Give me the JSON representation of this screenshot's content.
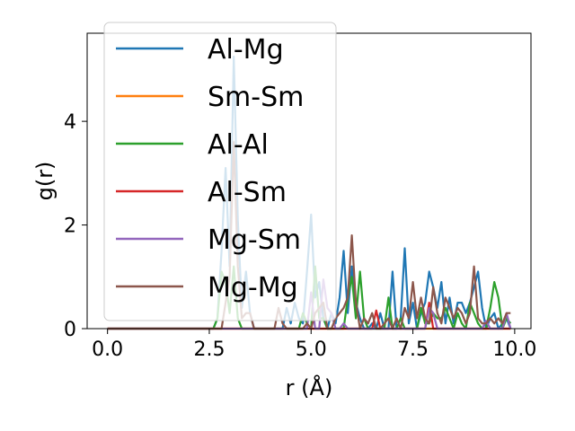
{
  "chart_data": {
    "type": "line",
    "title": "",
    "xlabel": "r (Å)",
    "ylabel": "g(r)",
    "xlim": [
      -0.5,
      10.4
    ],
    "ylim": [
      0,
      5.7
    ],
    "xticks": [
      0.0,
      2.5,
      5.0,
      7.5,
      10.0
    ],
    "xtick_labels": [
      "0.0",
      "2.5",
      "5.0",
      "7.5",
      "10.0"
    ],
    "yticks": [
      0,
      2,
      4
    ],
    "ytick_labels": [
      "0",
      "2",
      "4"
    ],
    "grid": false,
    "legend_position": "upper-left",
    "x": [
      0.0,
      0.1,
      0.2,
      0.3,
      0.4,
      0.5,
      0.6,
      0.7,
      0.8,
      0.9,
      1.0,
      1.1,
      1.2,
      1.3,
      1.4,
      1.5,
      1.6,
      1.7,
      1.8,
      1.9,
      2.0,
      2.1,
      2.2,
      2.3,
      2.4,
      2.5,
      2.6,
      2.7,
      2.8,
      2.9,
      3.0,
      3.1,
      3.2,
      3.3,
      3.4,
      3.5,
      3.6,
      3.7,
      3.8,
      3.9,
      4.0,
      4.1,
      4.2,
      4.3,
      4.4,
      4.5,
      4.6,
      4.7,
      4.8,
      4.9,
      5.0,
      5.1,
      5.2,
      5.3,
      5.4,
      5.5,
      5.6,
      5.7,
      5.8,
      5.9,
      6.0,
      6.1,
      6.2,
      6.3,
      6.4,
      6.5,
      6.6,
      6.7,
      6.8,
      6.9,
      7.0,
      7.1,
      7.2,
      7.3,
      7.4,
      7.5,
      7.6,
      7.7,
      7.8,
      7.9,
      8.0,
      8.1,
      8.2,
      8.3,
      8.4,
      8.5,
      8.6,
      8.7,
      8.8,
      8.9,
      9.0,
      9.1,
      9.2,
      9.3,
      9.4,
      9.5,
      9.6,
      9.7,
      9.8,
      9.9
    ],
    "series": [
      {
        "name": "Al-Mg",
        "color": "#1f77b4",
        "values": [
          0,
          0,
          0,
          0,
          0,
          0,
          0,
          0,
          0,
          0,
          0,
          0,
          0,
          0,
          0,
          0,
          0,
          0,
          0,
          0,
          0,
          0,
          0,
          0,
          0,
          0,
          0,
          0.2,
          1.5,
          3.1,
          1.2,
          5.25,
          2.1,
          0.4,
          1.1,
          0.3,
          0,
          0,
          0,
          0,
          0,
          0,
          0,
          0,
          0.4,
          0.1,
          0.5,
          0.2,
          0.1,
          1.1,
          2.2,
          0.6,
          0.9,
          0.2,
          0,
          0.3,
          0.1,
          0.6,
          1.5,
          0.3,
          1.2,
          0.5,
          0.2,
          0,
          0,
          0.1,
          0,
          0.3,
          0,
          0,
          1.1,
          0,
          0.2,
          1.55,
          0.1,
          0.5,
          0,
          0.3,
          0.5,
          1.1,
          0.8,
          0.4,
          0.9,
          0.1,
          0.6,
          0.1,
          0.5,
          0.5,
          0.3,
          0.5,
          0.8,
          1.1,
          0.4,
          0,
          0.2,
          0.3,
          0,
          0.1,
          0.2,
          0
        ]
      },
      {
        "name": "Sm-Sm",
        "color": "#ff7f0e",
        "values": [
          0,
          0,
          0,
          0,
          0,
          0,
          0,
          0,
          0,
          0,
          0,
          0,
          0,
          0,
          0,
          0,
          0,
          0,
          0,
          0,
          0,
          0,
          0,
          0,
          0,
          0,
          0,
          0,
          0,
          0,
          0,
          0,
          0,
          0,
          0,
          0,
          0,
          0,
          0,
          0,
          0,
          0,
          0,
          0,
          0,
          0,
          0,
          0,
          0,
          0,
          0,
          0,
          0,
          0,
          0,
          0,
          0,
          0,
          0,
          0,
          0,
          0,
          0,
          0,
          0,
          0,
          0,
          0,
          0,
          0,
          0,
          0,
          0,
          0,
          0,
          0,
          0,
          0,
          0,
          0,
          0,
          0,
          0,
          0,
          0,
          0,
          0,
          0,
          0,
          0,
          0,
          0,
          0,
          0,
          0,
          0,
          0,
          0,
          0,
          0
        ]
      },
      {
        "name": "Al-Al",
        "color": "#2ca02c",
        "values": [
          0,
          0,
          0,
          0,
          0,
          0,
          0,
          0,
          0,
          0,
          0,
          0,
          0,
          0,
          0,
          0,
          0,
          0,
          0,
          0,
          0,
          0,
          0,
          0,
          0,
          0,
          0,
          0.2,
          1.1,
          0.9,
          0.3,
          1.2,
          0.2,
          0,
          0,
          0,
          0,
          0,
          0,
          0,
          0,
          0,
          0,
          0,
          0,
          0,
          0,
          0,
          0.3,
          0.1,
          0,
          1.2,
          0.2,
          0.2,
          0,
          0,
          0,
          0,
          0,
          0.6,
          1.0,
          0.2,
          1.1,
          0.2,
          0,
          0,
          0,
          0,
          0,
          0.6,
          0,
          0,
          0.2,
          0,
          0,
          0,
          0,
          0.4,
          0.1,
          0.1,
          0.3,
          0.2,
          0.2,
          0.4,
          0.2,
          0,
          0.3,
          0.1,
          0,
          0.5,
          0.3,
          0.1,
          0,
          0,
          0.4,
          0.9,
          0.6,
          0,
          0.2,
          0.1
        ]
      },
      {
        "name": "Al-Sm",
        "color": "#d62728",
        "values": [
          0,
          0,
          0,
          0,
          0,
          0,
          0,
          0,
          0,
          0,
          0,
          0,
          0,
          0,
          0,
          0,
          0,
          0,
          0,
          0,
          0,
          0,
          0,
          0,
          0,
          0,
          0,
          0,
          0,
          0,
          0,
          0,
          0,
          0,
          0,
          0,
          0,
          0,
          0,
          0,
          0,
          0,
          0,
          0,
          0,
          0,
          0,
          0,
          0,
          0,
          0,
          0,
          0,
          0,
          0,
          0,
          0,
          0,
          0,
          0,
          0,
          0,
          0,
          0,
          0,
          0,
          0.35,
          0,
          0,
          0,
          0,
          0,
          0,
          0,
          0,
          0,
          0,
          0,
          0,
          0.5,
          0,
          0,
          0,
          0,
          0,
          0,
          0,
          0,
          0,
          0,
          0,
          0,
          0,
          0,
          0,
          0,
          0,
          0,
          0,
          0
        ]
      },
      {
        "name": "Mg-Sm",
        "color": "#9467bd",
        "values": [
          0,
          0,
          0,
          0,
          0,
          0,
          0,
          0,
          0,
          0,
          0,
          0,
          0,
          0,
          0,
          0,
          0,
          0,
          0,
          0,
          0,
          0,
          0,
          0,
          0,
          0,
          0,
          0,
          0,
          0,
          0,
          0,
          0,
          0,
          0,
          0,
          0,
          0,
          0,
          0,
          0,
          0,
          0,
          0,
          0,
          0,
          0,
          0,
          0,
          0,
          0.7,
          0,
          0,
          0.95,
          0.4,
          0.3,
          0,
          0,
          0.1,
          0,
          0,
          0,
          0,
          0,
          0,
          0,
          0,
          0,
          0,
          0,
          0,
          0,
          0,
          0,
          0,
          0,
          0,
          0,
          0,
          0.4,
          0.3,
          0,
          0,
          0,
          0,
          0,
          0,
          0,
          0,
          0,
          0,
          0,
          0,
          0.15,
          0,
          0,
          0,
          0,
          0.3,
          0
        ]
      },
      {
        "name": "Mg-Mg",
        "color": "#8c564b",
        "values": [
          0,
          0,
          0,
          0,
          0,
          0,
          0,
          0,
          0,
          0,
          0,
          0,
          0,
          0,
          0,
          0,
          0,
          0,
          0,
          0,
          0,
          0,
          0,
          0,
          0,
          0,
          0,
          0,
          0,
          0.5,
          1.0,
          3.6,
          1.2,
          0.2,
          0.3,
          0.3,
          0,
          0,
          0,
          0,
          0,
          0,
          0.4,
          0.1,
          0,
          0,
          0,
          0,
          0,
          0.1,
          0,
          0.3,
          0.4,
          0.5,
          0,
          0,
          0.2,
          0.3,
          0.4,
          0.6,
          1.8,
          0.5,
          0,
          0.2,
          0.1,
          0.3,
          0,
          0,
          0.1,
          0.2,
          0,
          0.2,
          0,
          0.4,
          0.2,
          0.9,
          0.2,
          0.6,
          0.2,
          0.1,
          0.8,
          0.3,
          0.1,
          0.6,
          0.4,
          0.2,
          0.4,
          0.3,
          0.1,
          0.3,
          1.2,
          0.2,
          0.1,
          0.1,
          0.2,
          0.1,
          0.2,
          0.1,
          0.3,
          0.3
        ]
      }
    ]
  }
}
